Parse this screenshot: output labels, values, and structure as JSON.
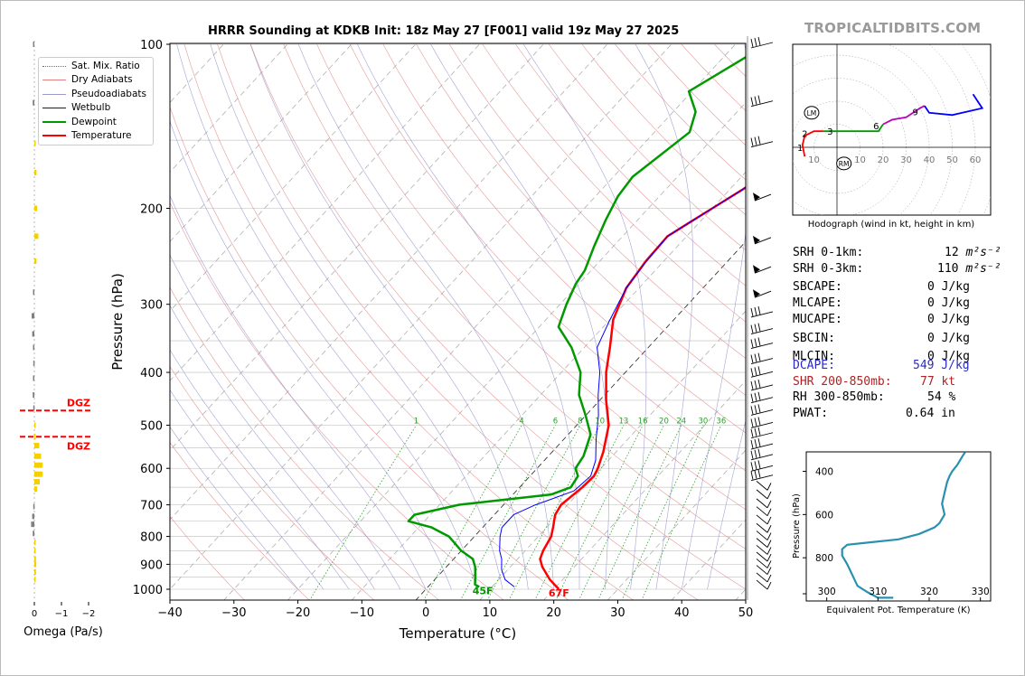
{
  "branding": "TROPICALTIDBITS.COM",
  "title": "HRRR Sounding at KDKB Init: 18z May 27 [F001] valid 19z May 27 2025",
  "legend": [
    {
      "label": "Sat. Mix. Ratio",
      "color": "#2ca02c",
      "style": "dotted"
    },
    {
      "label": "Dry Adiabats",
      "color": "#e08080",
      "style": "solid"
    },
    {
      "label": "Pseudoadiabats",
      "color": "#9999cc",
      "style": "solid"
    },
    {
      "label": "Wetbulb",
      "color": "#0000ff",
      "style": "solid"
    },
    {
      "label": "Dewpoint",
      "color": "#009900",
      "style": "solid"
    },
    {
      "label": "Temperature",
      "color": "#ff0000",
      "style": "solid"
    }
  ],
  "skewt": {
    "xlabel": "Temperature (°C)",
    "ylabel": "Pressure (hPa)",
    "x_ticks": [
      -40,
      -30,
      -20,
      -10,
      0,
      10,
      20,
      30,
      40,
      50
    ],
    "y_ticks": [
      100,
      200,
      300,
      400,
      500,
      600,
      700,
      800,
      900,
      1000
    ],
    "mix_ratio_labels": [
      "1",
      "4",
      "6",
      "8",
      "10",
      "13",
      "16",
      "20",
      "24",
      "30",
      "36"
    ],
    "surface_dewpoint_label": "45F",
    "surface_temperature_label": "67F"
  },
  "chart_data": [
    {
      "type": "line",
      "title": "HRRR Sounding at KDKB Init: 18z May 27 [F001] valid 19z May 27 2025",
      "xlabel": "Temperature (°C)",
      "ylabel": "Pressure (hPa)",
      "xlim": [
        -40,
        50
      ],
      "ylim": [
        1050,
        100
      ],
      "y_scale": "log",
      "skew": "skew-T",
      "series": [
        {
          "name": "Temperature",
          "color": "#ff0000",
          "points": [
            [
              20.8,
              1000
            ],
            [
              18,
              960
            ],
            [
              15,
              910
            ],
            [
              13.5,
              880
            ],
            [
              12.8,
              850
            ],
            [
              12,
              800
            ],
            [
              11,
              770
            ],
            [
              9.5,
              730
            ],
            [
              9,
              700
            ],
            [
              9.8,
              650
            ],
            [
              10,
              620
            ],
            [
              9.5,
              600
            ],
            [
              8,
              560
            ],
            [
              5,
              500
            ],
            [
              1,
              450
            ],
            [
              -3,
              400
            ],
            [
              -6,
              360
            ],
            [
              -9.5,
              320
            ],
            [
              -12,
              280
            ],
            [
              -12.8,
              250
            ],
            [
              -13,
              225
            ],
            [
              -10,
              200
            ],
            [
              -8,
              185
            ],
            [
              -5,
              160
            ],
            [
              -3,
              145
            ],
            [
              -1,
              133
            ],
            [
              0.5,
              122
            ],
            [
              3.5,
              100
            ]
          ]
        },
        {
          "name": "Wetbulb",
          "color": "#0000ff",
          "points": [
            [
              13.5,
              990
            ],
            [
              11,
              960
            ],
            [
              9,
              920
            ],
            [
              7.5,
              880
            ],
            [
              6,
              850
            ],
            [
              4,
              800
            ],
            [
              3,
              770
            ],
            [
              3,
              730
            ],
            [
              5,
              700
            ],
            [
              7,
              680
            ],
            [
              9,
              660
            ],
            [
              9.5,
              620
            ],
            [
              8,
              580
            ],
            [
              5,
              530
            ],
            [
              2,
              480
            ],
            [
              -1,
              440
            ],
            [
              -4,
              400
            ],
            [
              -8,
              360
            ],
            [
              -10,
              320
            ],
            [
              -12,
              280
            ],
            [
              -12.7,
              250
            ],
            [
              -13,
              225
            ],
            [
              -10,
              200
            ],
            [
              -8,
              185
            ],
            [
              -5.3,
              160
            ],
            [
              -3.3,
              145
            ],
            [
              -1.3,
              133
            ],
            [
              0.1,
              122
            ],
            [
              3,
              100
            ]
          ]
        },
        {
          "name": "Dewpoint",
          "color": "#009900",
          "points": [
            [
              8,
              990
            ],
            [
              7,
              980
            ],
            [
              6,
              950
            ],
            [
              4.5,
              910
            ],
            [
              3,
              880
            ],
            [
              0,
              850
            ],
            [
              -4,
              800
            ],
            [
              -8,
              770
            ],
            [
              -12.5,
              750
            ],
            [
              -12.5,
              730
            ],
            [
              -7,
              700
            ],
            [
              6,
              670
            ],
            [
              8,
              650
            ],
            [
              7.5,
              620
            ],
            [
              6,
              600
            ],
            [
              5.5,
              570
            ],
            [
              3.5,
              520
            ],
            [
              0,
              480
            ],
            [
              -4,
              440
            ],
            [
              -7,
              400
            ],
            [
              -12,
              360
            ],
            [
              -17,
              330
            ],
            [
              -19,
              300
            ],
            [
              -20.5,
              275
            ],
            [
              -21,
              260
            ],
            [
              -23,
              235
            ],
            [
              -25,
              210
            ],
            [
              -26.5,
              190
            ],
            [
              -27,
              175
            ],
            [
              -24.5,
              145
            ],
            [
              -26.5,
              133
            ],
            [
              -30.5,
              122
            ],
            [
              -25,
              100
            ]
          ]
        }
      ]
    },
    {
      "type": "line",
      "title": "",
      "xlabel": "Omega (Pa/s)",
      "x_ticks": [
        "0",
        "−1",
        "−2"
      ],
      "dgz_labels": [
        "DGZ",
        "DGZ"
      ],
      "dgz_top_hpa": 470,
      "dgz_bottom_hpa": 525,
      "bars": [
        {
          "p": 100,
          "omega": -0.05
        },
        {
          "p": 128,
          "omega": -0.06
        },
        {
          "p": 152,
          "omega": 0.05
        },
        {
          "p": 172,
          "omega": 0.08
        },
        {
          "p": 200,
          "omega": 0.1
        },
        {
          "p": 225,
          "omega": 0.15
        },
        {
          "p": 250,
          "omega": 0.08
        },
        {
          "p": 285,
          "omega": -0.05
        },
        {
          "p": 315,
          "omega": -0.1
        },
        {
          "p": 340,
          "omega": -0.08
        },
        {
          "p": 360,
          "omega": -0.05
        },
        {
          "p": 385,
          "omega": -0.04
        },
        {
          "p": 410,
          "omega": -0.05
        },
        {
          "p": 440,
          "omega": -0.06
        },
        {
          "p": 465,
          "omega": -0.04
        },
        {
          "p": 500,
          "omega": 0.05
        },
        {
          "p": 525,
          "omega": 0.05
        },
        {
          "p": 545,
          "omega": 0.18
        },
        {
          "p": 570,
          "omega": 0.25
        },
        {
          "p": 592,
          "omega": 0.3
        },
        {
          "p": 615,
          "omega": 0.3
        },
        {
          "p": 635,
          "omega": 0.2
        },
        {
          "p": 655,
          "omega": 0.1
        },
        {
          "p": 705,
          "omega": -0.04
        },
        {
          "p": 735,
          "omega": -0.08
        },
        {
          "p": 760,
          "omega": -0.12
        },
        {
          "p": 790,
          "omega": -0.06
        },
        {
          "p": 820,
          "omega": 0.03
        },
        {
          "p": 850,
          "omega": 0.05
        },
        {
          "p": 880,
          "omega": 0.06
        },
        {
          "p": 900,
          "omega": 0.07
        },
        {
          "p": 930,
          "omega": 0.06
        },
        {
          "p": 960,
          "omega": 0.05
        }
      ]
    },
    {
      "type": "line",
      "title": "Hodograph (wind in kt, height in km)",
      "x_ticks": [
        "10",
        "10",
        "20",
        "30",
        "40",
        "50",
        "60"
      ],
      "height_labels": [
        "1",
        "2",
        "3",
        "6",
        "9"
      ],
      "markers": [
        "LM",
        "RM"
      ],
      "segments": [
        {
          "color": "#ff0000",
          "points": [
            [
              -14,
              -4
            ],
            [
              -15,
              1
            ],
            [
              -14,
              5
            ],
            [
              -10,
              7
            ],
            [
              -6,
              7
            ]
          ]
        },
        {
          "color": "#009900",
          "points": [
            [
              -6,
              7
            ],
            [
              2,
              7
            ],
            [
              10,
              7
            ],
            [
              18,
              7
            ],
            [
              20,
              10
            ]
          ]
        },
        {
          "color": "#bb00bb",
          "points": [
            [
              20,
              10
            ],
            [
              24,
              12
            ],
            [
              30,
              13
            ],
            [
              36,
              17
            ],
            [
              38,
              18
            ]
          ]
        },
        {
          "color": "#0000ff",
          "points": [
            [
              38,
              18
            ],
            [
              40,
              15
            ],
            [
              50,
              14
            ],
            [
              63,
              17
            ],
            [
              59,
              23
            ]
          ]
        }
      ]
    },
    {
      "type": "line",
      "title": "",
      "xlabel": "Equivalent Pot. Temperature (K)",
      "ylabel": "Pressure (hPa)",
      "x_ticks": [
        300,
        310,
        320,
        330
      ],
      "y_ticks": [
        400,
        600,
        800
      ],
      "xlim": [
        296,
        332
      ],
      "color": "#2a90b0",
      "points": [
        [
          313,
          985
        ],
        [
          310,
          985
        ],
        [
          308,
          960
        ],
        [
          306,
          930
        ],
        [
          305,
          880
        ],
        [
          304,
          830
        ],
        [
          303,
          790
        ],
        [
          303,
          760
        ],
        [
          304,
          740
        ],
        [
          308,
          730
        ],
        [
          314,
          715
        ],
        [
          318,
          690
        ],
        [
          321,
          660
        ],
        [
          322,
          640
        ],
        [
          323,
          600
        ],
        [
          322.5,
          550
        ],
        [
          323,
          500
        ],
        [
          323.5,
          450
        ],
        [
          324,
          420
        ],
        [
          324.5,
          400
        ],
        [
          325.5,
          370
        ],
        [
          326.5,
          330
        ],
        [
          327,
          312
        ]
      ]
    }
  ],
  "stats": [
    {
      "label": "SRH 0-1km:",
      "value": "12",
      "unit": "m²s⁻²",
      "color": "#000000"
    },
    {
      "label": "SRH 0-3km:",
      "value": "110",
      "unit": "m²s⁻²",
      "color": "#000000"
    },
    {
      "label": "SBCAPE:",
      "value": "0 J/kg",
      "unit": "",
      "color": "#000000"
    },
    {
      "label": "MLCAPE:",
      "value": "0 J/kg",
      "unit": "",
      "color": "#000000"
    },
    {
      "label": "MUCAPE:",
      "value": "0 J/kg",
      "unit": "",
      "color": "#000000"
    },
    {
      "label": "SBCIN:",
      "value": "0 J/kg",
      "unit": "",
      "color": "#000000"
    },
    {
      "label": "MLCIN:",
      "value": "0 J/kg",
      "unit": "",
      "color": "#000000"
    },
    {
      "label": "DCAPE:",
      "value": "549 J/kg",
      "unit": "",
      "color": "#2a2acc"
    },
    {
      "label": "SHR 200-850mb:",
      "value": "77 kt",
      "unit": "",
      "color": "#b22222"
    },
    {
      "label": "RH 300-850mb:",
      "value": "54 %",
      "unit": "",
      "color": "#000000"
    },
    {
      "label": "PWAT:",
      "value": "0.64 in",
      "unit": "",
      "color": "#000000"
    }
  ]
}
